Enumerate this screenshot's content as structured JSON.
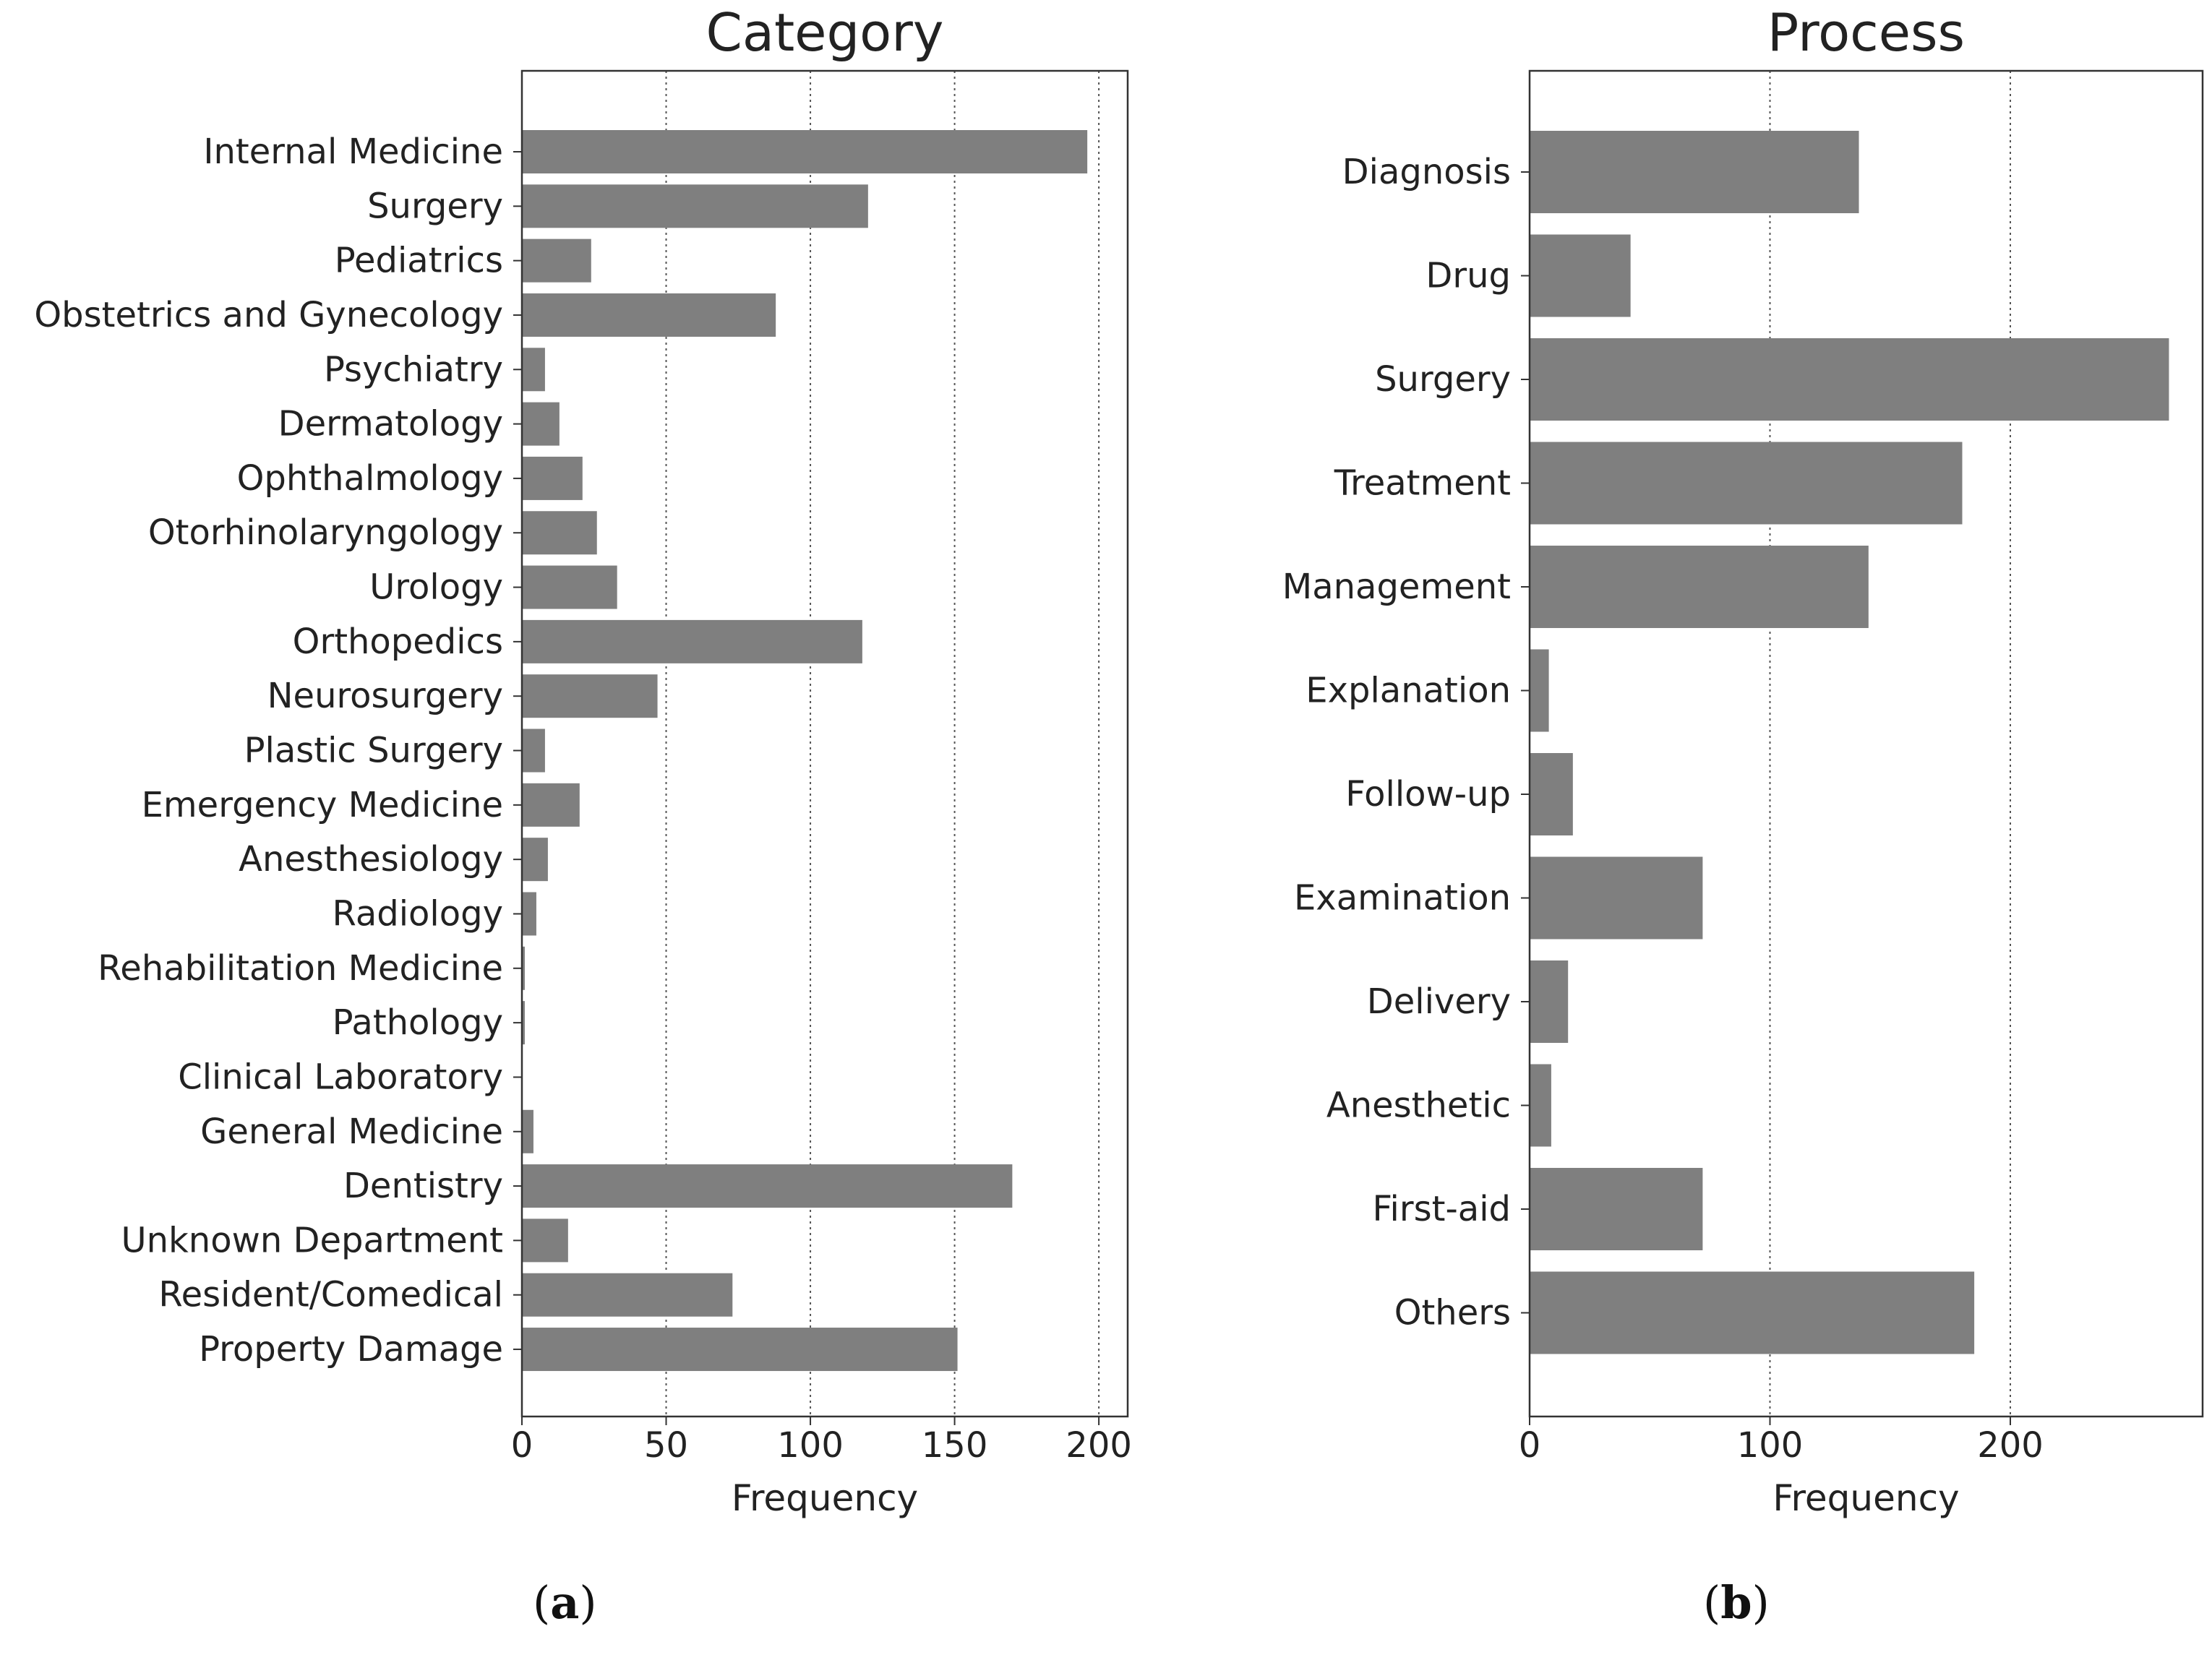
{
  "figure": {
    "captions": [
      {
        "open": "(",
        "letter": "a",
        "close": ")"
      },
      {
        "open": "(",
        "letter": "b",
        "close": ")"
      }
    ]
  },
  "colors": {
    "bar": "#7f7f7f",
    "axis": "#333333",
    "grid": "#555555",
    "text": "#222222"
  },
  "chart_data": [
    {
      "type": "bar",
      "orientation": "horizontal",
      "title": "Category",
      "xlabel": "Frequency",
      "ylabel": "",
      "xlim": [
        0,
        210
      ],
      "xticks": [
        0,
        50,
        100,
        150,
        200
      ],
      "grid": "x-dotted",
      "categories": [
        "Internal Medicine",
        "Surgery",
        "Pediatrics",
        "Obstetrics and Gynecology",
        "Psychiatry",
        "Dermatology",
        "Ophthalmology",
        "Otorhinolaryngology",
        "Urology",
        "Orthopedics",
        "Neurosurgery",
        "Plastic Surgery",
        "Emergency Medicine",
        "Anesthesiology",
        "Radiology",
        "Rehabilitation Medicine",
        "Pathology",
        "Clinical Laboratory",
        "General Medicine",
        "Dentistry",
        "Unknown Department",
        "Resident/Comedical",
        "Property Damage"
      ],
      "values": [
        196,
        120,
        24,
        88,
        8,
        13,
        21,
        26,
        33,
        118,
        47,
        8,
        20,
        9,
        5,
        1,
        1,
        0,
        4,
        170,
        16,
        73,
        151
      ]
    },
    {
      "type": "bar",
      "orientation": "horizontal",
      "title": "Process",
      "xlabel": "Frequency",
      "ylabel": "",
      "xlim": [
        0,
        280
      ],
      "xticks": [
        0,
        100,
        200
      ],
      "grid": "x-dotted",
      "categories": [
        "Diagnosis",
        "Drug",
        "Surgery",
        "Treatment",
        "Management",
        "Explanation",
        "Follow-up",
        "Examination",
        "Delivery",
        "Anesthetic",
        "First-aid",
        "Others"
      ],
      "values": [
        137,
        42,
        266,
        180,
        141,
        8,
        18,
        72,
        16,
        9,
        72,
        185
      ]
    }
  ]
}
